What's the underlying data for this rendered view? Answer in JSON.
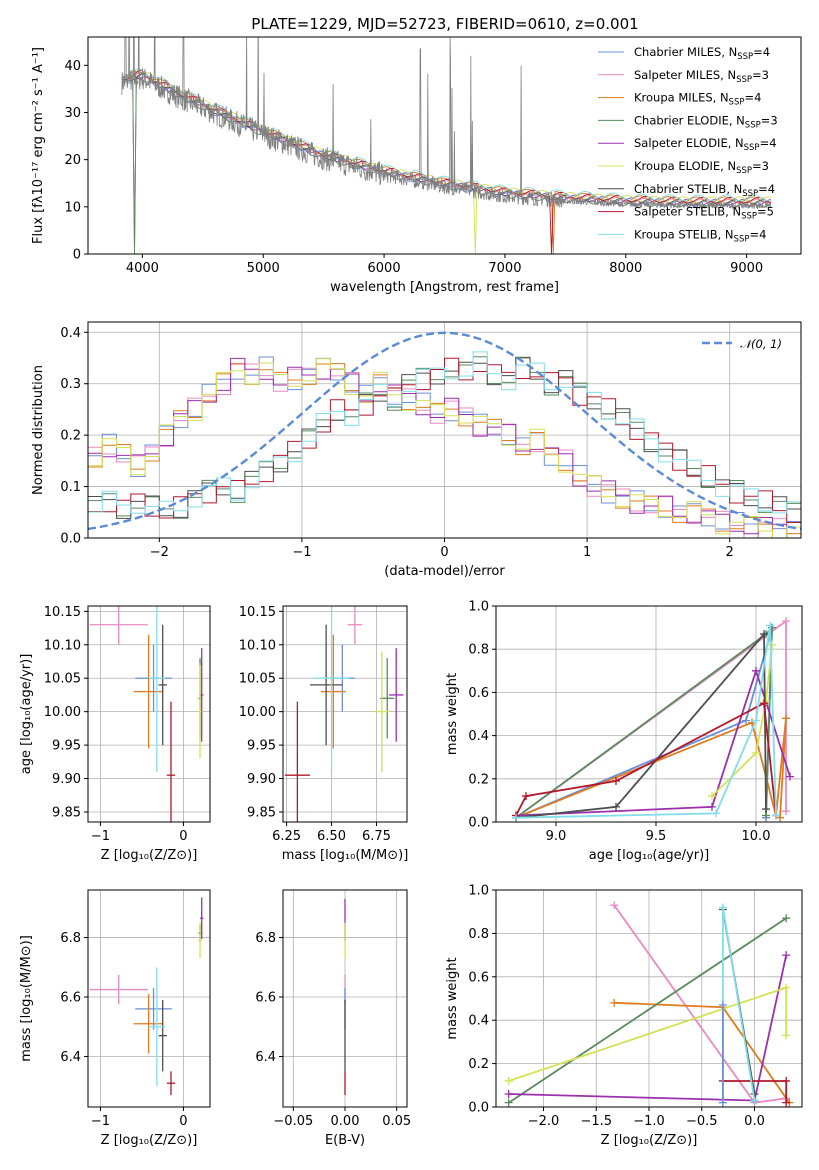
{
  "figure_title": "PLATE=1229, MJD=52723, FIBERID=0610, z=0.001",
  "models": [
    {
      "name": "Chabrier MILES, N",
      "sub": "SSP",
      "tail": "=4",
      "color": "#6b8fdb"
    },
    {
      "name": "Salpeter MILES, N",
      "sub": "SSP",
      "tail": "=3",
      "color": "#e78ac3"
    },
    {
      "name": "Kroupa MILES, N",
      "sub": "SSP",
      "tail": "=4",
      "color": "#e07b1f"
    },
    {
      "name": "Chabrier ELODIE, N",
      "sub": "SSP",
      "tail": "=3",
      "color": "#5a8a5e"
    },
    {
      "name": "Salpeter ELODIE, N",
      "sub": "SSP",
      "tail": "=4",
      "color": "#9b2fae"
    },
    {
      "name": "Kroupa ELODIE, N",
      "sub": "SSP",
      "tail": "=3",
      "color": "#d4e157"
    },
    {
      "name": "Chabrier STELIB, N",
      "sub": "SSP",
      "tail": "=4",
      "color": "#4d4d4d"
    },
    {
      "name": "Salpeter STELIB, N",
      "sub": "SSP",
      "tail": "=5",
      "color": "#b2182b"
    },
    {
      "name": "Kroupa STELIB, N",
      "sub": "SSP",
      "tail": "=4",
      "color": "#80deea"
    }
  ],
  "chart_data": [
    {
      "id": "spectrum",
      "type": "line",
      "title": "PLATE=1229, MJD=52723, FIBERID=0610, z=0.001",
      "xlabel": "wavelength [Angstrom, rest frame]",
      "ylabel": "Flux [fλ10⁻¹⁷ erg cm⁻² s⁻¹ A⁻¹]",
      "xlim": [
        3550,
        9450
      ],
      "ylim": [
        0,
        46
      ],
      "xticks": [
        4000,
        5000,
        6000,
        7000,
        8000,
        9000
      ],
      "yticks": [
        0,
        10,
        20,
        30,
        40
      ],
      "data_color": "#808080",
      "continuum": {
        "x": [
          3830,
          4000,
          4300,
          4600,
          5000,
          5500,
          6000,
          6500,
          7000,
          7500,
          8000,
          8500,
          9000,
          9200
        ],
        "y": [
          37,
          38,
          34,
          30.5,
          26,
          21,
          17.5,
          15,
          13,
          12,
          11.3,
          11,
          11,
          11
        ]
      },
      "emission_lines": [
        3860,
        3890,
        3930,
        3970,
        4102,
        4340,
        4861,
        4959,
        5007,
        5577,
        5890,
        6300,
        6363,
        6548,
        6563,
        6583,
        6717,
        6731,
        7135
      ],
      "model_drops": [
        {
          "model": 0,
          "x": 3940
        },
        {
          "model": 1,
          "x": 3940
        },
        {
          "model": 3,
          "x": 3935
        },
        {
          "model": 5,
          "x": 6760
        },
        {
          "model": 7,
          "x": 7380
        },
        {
          "model": 2,
          "x": 7400
        }
      ]
    },
    {
      "id": "residuals",
      "type": "line",
      "xlabel": "(data-model)/error",
      "ylabel": "Normed distribution",
      "xlim": [
        -2.5,
        2.5
      ],
      "ylim": [
        0,
        0.42
      ],
      "xticks": [
        -2,
        -1,
        0,
        1,
        2
      ],
      "yticks": [
        0.0,
        0.1,
        0.2,
        0.3,
        0.4
      ],
      "reference_label": "𝒩(0, 1)",
      "reference_color": "#5b8bd6",
      "bin_width": 0.1,
      "groupA": [
        0.16,
        0.18,
        0.16,
        0.14,
        0.17,
        0.2,
        0.23,
        0.25,
        0.28,
        0.3,
        0.33,
        0.32,
        0.33,
        0.3,
        0.31,
        0.32,
        0.33,
        0.32,
        0.3,
        0.28,
        0.3,
        0.28,
        0.27,
        0.26,
        0.24,
        0.25,
        0.24,
        0.22,
        0.21,
        0.2,
        0.18,
        0.19,
        0.16,
        0.15,
        0.12,
        0.1,
        0.09,
        0.08,
        0.07,
        0.06,
        0.06,
        0.05,
        0.05,
        0.04,
        0.03,
        0.03,
        0.02,
        0.02,
        0.02,
        0.01
      ],
      "groupB": [
        0.06,
        0.07,
        0.06,
        0.07,
        0.06,
        0.05,
        0.06,
        0.08,
        0.09,
        0.1,
        0.09,
        0.11,
        0.13,
        0.15,
        0.17,
        0.19,
        0.22,
        0.25,
        0.24,
        0.26,
        0.28,
        0.27,
        0.3,
        0.31,
        0.32,
        0.33,
        0.32,
        0.34,
        0.32,
        0.31,
        0.33,
        0.32,
        0.3,
        0.31,
        0.28,
        0.27,
        0.25,
        0.23,
        0.21,
        0.19,
        0.17,
        0.15,
        0.13,
        0.12,
        0.1,
        0.09,
        0.08,
        0.07,
        0.06,
        0.05
      ],
      "groupA_models": [
        0,
        1,
        2,
        4,
        5
      ],
      "groupB_models": [
        3,
        6,
        7,
        8
      ]
    },
    {
      "id": "age-vs-Z",
      "type": "scatter",
      "xlabel": "Z [log₁₀(Z/Z⊙)]",
      "ylabel": "age  [log₁₀(age/yr)]",
      "xlim": [
        -1.15,
        0.32
      ],
      "ylim": [
        9.835,
        10.158
      ],
      "xticks": [
        -1,
        0
      ],
      "yticks": [
        9.85,
        9.9,
        9.95,
        10.0,
        10.05,
        10.1,
        10.15
      ],
      "points": [
        {
          "model": 0,
          "x": -0.36,
          "y": 10.05,
          "xerr": 0.22,
          "yerr": 0.05
        },
        {
          "model": 1,
          "x": -0.78,
          "y": 10.13,
          "xerr": 0.35,
          "yerr": 0.03
        },
        {
          "model": 2,
          "x": -0.42,
          "y": 10.03,
          "xerr": 0.18,
          "yerr": 0.085
        },
        {
          "model": 3,
          "x": 0.2,
          "y": 10.02,
          "xerr": 0.02,
          "yerr": 0.06
        },
        {
          "model": 4,
          "x": 0.22,
          "y": 10.025,
          "xerr": 0.02,
          "yerr": 0.07
        },
        {
          "model": 5,
          "x": 0.2,
          "y": 10.0,
          "xerr": 0.02,
          "yerr": 0.07
        },
        {
          "model": 6,
          "x": -0.25,
          "y": 10.04,
          "xerr": 0.05,
          "yerr": 0.09
        },
        {
          "model": 7,
          "x": -0.15,
          "y": 9.905,
          "xerr": 0.05,
          "yerr": 0.11
        },
        {
          "model": 8,
          "x": -0.32,
          "y": 10.05,
          "xerr": 0.1,
          "yerr": 0.14
        }
      ]
    },
    {
      "id": "age-vs-mass",
      "type": "scatter",
      "xlabel": "mass [log₁₀(M/M⊙)]",
      "ylabel": "",
      "xlim": [
        6.23,
        6.92
      ],
      "ylim": [
        9.835,
        10.158
      ],
      "xticks": [
        6.25,
        6.5,
        6.75
      ],
      "yticks": [
        9.85,
        9.9,
        9.95,
        10.0,
        10.05,
        10.1,
        10.15
      ],
      "points": [
        {
          "model": 0,
          "x": 6.56,
          "y": 10.05,
          "xerr": 0.07,
          "yerr": 0.05
        },
        {
          "model": 1,
          "x": 6.63,
          "y": 10.13,
          "xerr": 0.04,
          "yerr": 0.03
        },
        {
          "model": 2,
          "x": 6.51,
          "y": 10.03,
          "xerr": 0.07,
          "yerr": 0.085
        },
        {
          "model": 3,
          "x": 6.81,
          "y": 10.02,
          "xerr": 0.04,
          "yerr": 0.06
        },
        {
          "model": 4,
          "x": 6.86,
          "y": 10.025,
          "xerr": 0.04,
          "yerr": 0.07
        },
        {
          "model": 5,
          "x": 6.78,
          "y": 10.0,
          "xerr": 0.04,
          "yerr": 0.09
        },
        {
          "model": 6,
          "x": 6.47,
          "y": 10.04,
          "xerr": 0.09,
          "yerr": 0.09
        },
        {
          "model": 7,
          "x": 6.31,
          "y": 9.905,
          "xerr": 0.07,
          "yerr": 0.11
        },
        {
          "model": 8,
          "x": 6.5,
          "y": 10.05,
          "xerr": 0.1,
          "yerr": 0.14
        }
      ]
    },
    {
      "id": "weight-vs-age",
      "type": "line",
      "xlabel": "age  [log₁₀(age/yr)]",
      "ylabel": "mass weight",
      "xlim": [
        8.7,
        10.23
      ],
      "ylim": [
        0,
        1
      ],
      "xticks": [
        9.0,
        9.5,
        10.0
      ],
      "yticks": [
        0.0,
        0.2,
        0.4,
        0.6,
        0.8,
        1.0
      ],
      "series": [
        {
          "model": 0,
          "x": [
            8.8,
            9.95,
            10.08,
            10.05
          ],
          "y": [
            0.02,
            0.47,
            0.9,
            0.02
          ]
        },
        {
          "model": 1,
          "x": [
            8.8,
            10.15,
            10.15
          ],
          "y": [
            0.02,
            0.93,
            0.05
          ]
        },
        {
          "model": 2,
          "x": [
            8.8,
            9.98,
            10.1,
            10.15,
            10.12
          ],
          "y": [
            0.02,
            0.46,
            0.03,
            0.48,
            0.02
          ]
        },
        {
          "model": 3,
          "x": [
            8.8,
            10.05,
            10.08,
            10.05
          ],
          "y": [
            0.02,
            0.87,
            0.9,
            0.03
          ]
        },
        {
          "model": 4,
          "x": [
            8.8,
            9.78,
            10.0,
            10.17
          ],
          "y": [
            0.03,
            0.07,
            0.7,
            0.21
          ]
        },
        {
          "model": 5,
          "x": [
            9.78,
            10.0,
            10.05,
            10.08
          ],
          "y": [
            0.12,
            0.32,
            0.56,
            0.82
          ]
        },
        {
          "model": 6,
          "x": [
            8.8,
            9.3,
            10.04,
            10.05
          ],
          "y": [
            0.02,
            0.07,
            0.87,
            0.06
          ]
        },
        {
          "model": 7,
          "x": [
            8.8,
            8.85,
            9.3,
            10.04,
            10.1
          ],
          "y": [
            0.03,
            0.12,
            0.19,
            0.55,
            0.03
          ]
        },
        {
          "model": 8,
          "x": [
            8.8,
            9.8,
            10.0,
            10.07,
            10.1
          ],
          "y": [
            0.02,
            0.04,
            0.47,
            0.91,
            0.03
          ]
        }
      ]
    },
    {
      "id": "mass-vs-Z",
      "type": "scatter",
      "xlabel": "Z [log₁₀(Z/Z⊙)]",
      "ylabel": "mass [log₁₀(M/M⊙)]",
      "xlim": [
        -1.15,
        0.32
      ],
      "ylim": [
        6.23,
        6.96
      ],
      "xticks": [
        -1,
        0
      ],
      "yticks": [
        6.4,
        6.6,
        6.8
      ],
      "points": [
        {
          "model": 0,
          "x": -0.36,
          "y": 6.56,
          "xerr": 0.22,
          "yerr": 0.07
        },
        {
          "model": 1,
          "x": -0.78,
          "y": 6.625,
          "xerr": 0.35,
          "yerr": 0.05
        },
        {
          "model": 2,
          "x": -0.42,
          "y": 6.51,
          "xerr": 0.18,
          "yerr": 0.1
        },
        {
          "model": 3,
          "x": 0.2,
          "y": 6.815,
          "xerr": 0.02,
          "yerr": 0.03
        },
        {
          "model": 4,
          "x": 0.22,
          "y": 6.865,
          "xerr": 0.02,
          "yerr": 0.07
        },
        {
          "model": 5,
          "x": 0.2,
          "y": 6.79,
          "xerr": 0.02,
          "yerr": 0.06
        },
        {
          "model": 6,
          "x": -0.25,
          "y": 6.47,
          "xerr": 0.05,
          "yerr": 0.12
        },
        {
          "model": 7,
          "x": -0.15,
          "y": 6.31,
          "xerr": 0.05,
          "yerr": 0.04
        },
        {
          "model": 8,
          "x": -0.32,
          "y": 6.5,
          "xerr": 0.1,
          "yerr": 0.2
        }
      ]
    },
    {
      "id": "mass-vs-EBV",
      "type": "scatter",
      "xlabel": "E(B-V)",
      "ylabel": "",
      "xlim": [
        -0.06,
        0.06
      ],
      "ylim": [
        6.23,
        6.96
      ],
      "xticks": [
        -0.05,
        0.0,
        0.05
      ],
      "yticks": [
        6.4,
        6.6,
        6.8
      ],
      "xtick_labels": [
        "−0.05",
        "0.00",
        "0.05"
      ],
      "points": [
        {
          "model": 4,
          "x": 0.0,
          "y": 6.86,
          "yerr": 0.07
        },
        {
          "model": 5,
          "x": 0.0,
          "y": 6.79,
          "yerr": 0.06
        },
        {
          "model": 1,
          "x": 0.0,
          "y": 6.625,
          "yerr": 0.05
        },
        {
          "model": 0,
          "x": 0.0,
          "y": 6.56,
          "yerr": 0.07
        },
        {
          "model": 7,
          "x": 0.0,
          "y": 6.31,
          "yerr": 0.04
        },
        {
          "model": 6,
          "x": 0.0,
          "y": 6.47,
          "yerr": 0.12
        }
      ]
    },
    {
      "id": "weight-vs-Z",
      "type": "line",
      "xlabel": "Z [log₁₀(Z/Z⊙)]",
      "ylabel": "mass weight",
      "xlim": [
        -2.45,
        0.45
      ],
      "ylim": [
        0,
        1
      ],
      "xticks": [
        -2.0,
        -1.5,
        -1.0,
        -0.5,
        0.0
      ],
      "yticks": [
        0.0,
        0.2,
        0.4,
        0.6,
        0.8,
        1.0
      ],
      "series": [
        {
          "model": 1,
          "x": [
            -1.33,
            0.0,
            0.3
          ],
          "y": [
            0.93,
            0.02,
            0.04
          ]
        },
        {
          "model": 2,
          "x": [
            -1.33,
            -0.3,
            0.33
          ],
          "y": [
            0.48,
            0.46,
            0.02
          ]
        },
        {
          "model": 3,
          "x": [
            -2.33,
            0.3
          ],
          "y": [
            0.02,
            0.87
          ]
        },
        {
          "model": 4,
          "x": [
            -2.33,
            0.0,
            0.3
          ],
          "y": [
            0.06,
            0.03,
            0.7
          ]
        },
        {
          "model": 5,
          "x": [
            -2.33,
            0.3,
            0.3
          ],
          "y": [
            0.12,
            0.55,
            0.33
          ]
        },
        {
          "model": 6,
          "x": [
            -0.3,
            0.0,
            0.0
          ],
          "y": [
            0.91,
            0.06,
            0.03
          ]
        },
        {
          "model": 7,
          "x": [
            -0.3,
            0.3,
            0.3
          ],
          "y": [
            0.12,
            0.12,
            0.02
          ]
        },
        {
          "model": 8,
          "x": [
            -0.3,
            -0.3,
            0.0
          ],
          "y": [
            0.02,
            0.92,
            0.03
          ]
        },
        {
          "model": 0,
          "x": [
            -0.3,
            -0.3
          ],
          "y": [
            0.47,
            0.02
          ]
        }
      ]
    }
  ]
}
